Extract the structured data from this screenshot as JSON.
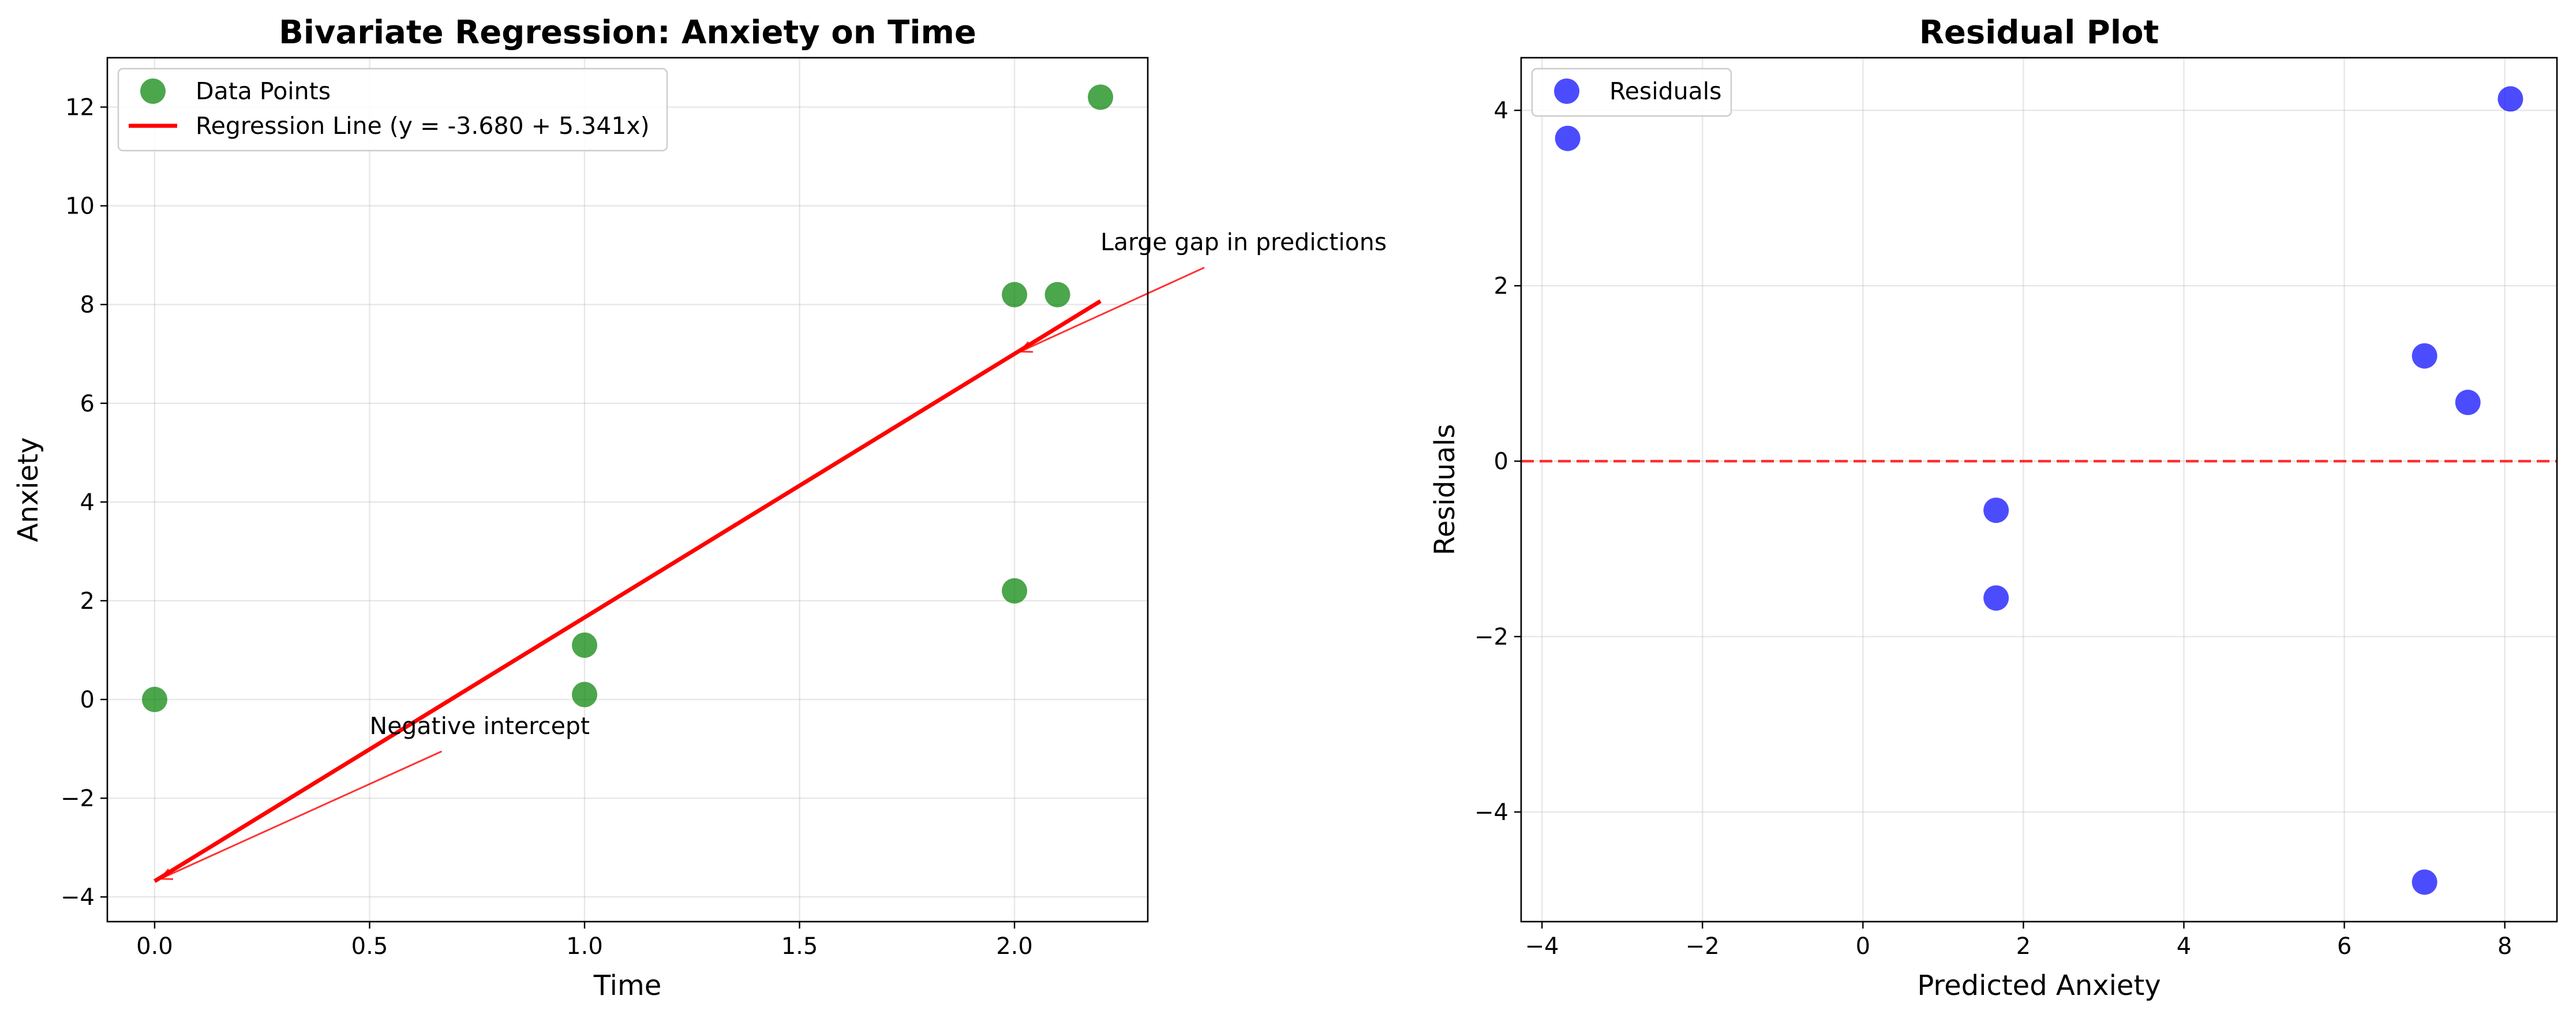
{
  "chart_data": [
    {
      "type": "scatter",
      "title": "Bivariate Regression: Anxiety on Time",
      "xlabel": "Time",
      "ylabel": "Anxiety",
      "xlim": [
        -0.11,
        2.31
      ],
      "ylim": [
        -4.5,
        13.0
      ],
      "xticks": [
        0.0,
        0.5,
        1.0,
        1.5,
        2.0
      ],
      "xtick_labels": [
        "0.0",
        "0.5",
        "1.0",
        "1.5",
        "2.0"
      ],
      "yticks": [
        -4,
        -2,
        0,
        2,
        4,
        6,
        8,
        10,
        12
      ],
      "ytick_labels": [
        "−4",
        "−2",
        "0",
        "2",
        "4",
        "6",
        "8",
        "10",
        "12"
      ],
      "grid": true,
      "legend_position": "top-left",
      "legend": [
        "Data Points",
        "Regression Line (y = -3.680 + 5.341x)"
      ],
      "colors": {
        "points": "#008000",
        "line": "#ff0000"
      },
      "points": [
        {
          "x": 0.0,
          "y": 0.0
        },
        {
          "x": 1.0,
          "y": 0.1
        },
        {
          "x": 1.0,
          "y": 1.1
        },
        {
          "x": 2.0,
          "y": 2.2
        },
        {
          "x": 2.0,
          "y": 8.2
        },
        {
          "x": 2.1,
          "y": 8.2
        },
        {
          "x": 2.2,
          "y": 12.2
        }
      ],
      "regression": {
        "intercept": -3.68,
        "slope": 5.341,
        "x_range": [
          0.0,
          2.2
        ]
      },
      "annotations": [
        {
          "text": "Negative intercept",
          "text_xy": [
            0.5,
            -0.7
          ],
          "point_xy": [
            0.0,
            -3.68
          ]
        },
        {
          "text": "Large gap in predictions",
          "text_xy": [
            2.2,
            9.1
          ],
          "point_xy": [
            2.0,
            7.0
          ]
        }
      ]
    },
    {
      "type": "scatter",
      "title": "Residual Plot",
      "xlabel": "Predicted Anxiety",
      "ylabel": "Residuals",
      "xlim": [
        -4.26,
        8.65
      ],
      "ylim": [
        -5.25,
        4.6
      ],
      "xticks": [
        -4,
        -2,
        0,
        2,
        4,
        6,
        8
      ],
      "xtick_labels": [
        "−4",
        "−2",
        "0",
        "2",
        "4",
        "6",
        "8"
      ],
      "yticks": [
        -4,
        -2,
        0,
        2,
        4
      ],
      "ytick_labels": [
        "−4",
        "−2",
        "0",
        "2",
        "4"
      ],
      "grid": true,
      "legend_position": "top-left",
      "legend": [
        "Residuals"
      ],
      "colors": {
        "points": "#0000ff",
        "zero_line": "#ff0000"
      },
      "points": [
        {
          "x": -3.68,
          "y": 3.68
        },
        {
          "x": 1.66,
          "y": -0.56
        },
        {
          "x": 1.66,
          "y": -1.56
        },
        {
          "x": 7.0,
          "y": 1.2
        },
        {
          "x": 7.0,
          "y": -4.8
        },
        {
          "x": 7.54,
          "y": 0.67
        },
        {
          "x": 8.07,
          "y": 4.13
        }
      ],
      "zero_line": 0
    }
  ]
}
